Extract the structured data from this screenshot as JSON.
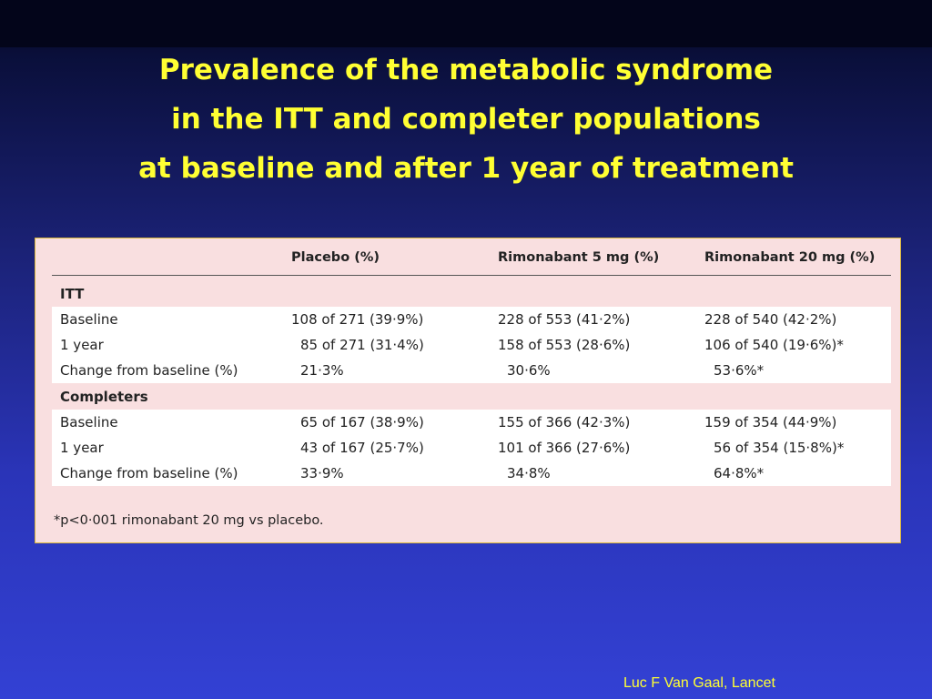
{
  "slide": {
    "title_lines": [
      "Prevalence of the metabolic syndrome",
      "in the ITT and completer populations",
      "at baseline and after 1 year of treatment"
    ],
    "credit": "Luc F Van Gaal, Lancet"
  },
  "table": {
    "headers": [
      "",
      "Placebo (%)",
      "Rimonabant 5 mg (%)",
      "Rimonabant 20 mg (%)"
    ],
    "sections": [
      {
        "label": "ITT",
        "rows": [
          [
            "Baseline",
            "108 of 271 (39·9%)",
            "228 of 553 (41·2%)",
            "228 of 540 (42·2%)"
          ],
          [
            "1 year",
            "85 of 271 (31·4%)",
            "158 of 553 (28·6%)",
            "106 of 540 (19·6%)*"
          ],
          [
            "Change from baseline (%)",
            "21·3%",
            "30·6%",
            "53·6%*"
          ]
        ]
      },
      {
        "label": "Completers",
        "rows": [
          [
            "Baseline",
            "65 of 167 (38·9%)",
            "155 of 366 (42·3%)",
            "159 of 354 (44·9%)"
          ],
          [
            "1 year",
            "43 of 167 (25·7%)",
            "101 of 366 (27·6%)",
            "56 of 354 (15·8%)*"
          ],
          [
            "Change from baseline (%)",
            "33·9%",
            "34·8%",
            "64·8%*"
          ]
        ]
      }
    ],
    "footnote": "*p<0·001 rimonabant 20 mg vs placebo."
  },
  "colors": {
    "title": "#ffff33",
    "table_background": "#f9dfe0",
    "row_band": "#ffffff",
    "panel_border": "#d8b63a"
  }
}
